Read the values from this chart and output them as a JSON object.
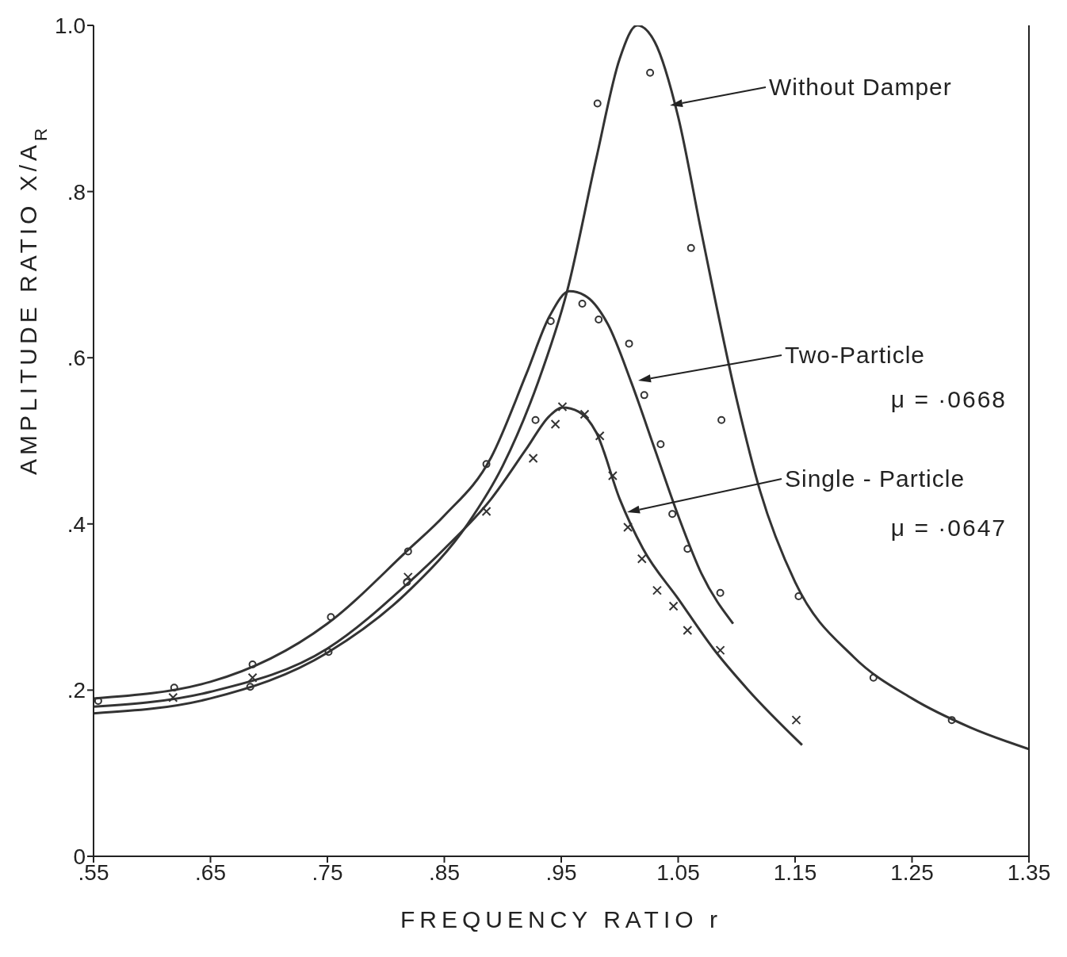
{
  "chart_data": {
    "type": "line",
    "xlabel": "FREQUENCY RATIO r",
    "ylabel": "AMPLITUDE RATIO X/A$_{R}$",
    "xlim": [
      0.55,
      1.35
    ],
    "ylim": [
      0,
      1.0
    ],
    "xticks": [
      {
        "value": 0.55,
        "label": ".55"
      },
      {
        "value": 0.65,
        "label": ".65"
      },
      {
        "value": 0.75,
        "label": ".75"
      },
      {
        "value": 0.85,
        "label": ".85"
      },
      {
        "value": 0.95,
        "label": ".95"
      },
      {
        "value": 1.05,
        "label": "1.05"
      },
      {
        "value": 1.15,
        "label": "1.15"
      },
      {
        "value": 1.25,
        "label": "1.25"
      },
      {
        "value": 1.35,
        "label": "1.35"
      }
    ],
    "yticks": [
      0,
      {
        "value": 0.2,
        "label": ".2"
      },
      {
        "value": 0.4,
        "label": ".4"
      },
      {
        "value": 0.6,
        "label": ".6"
      },
      {
        "value": 0.8,
        "label": ".8"
      },
      {
        "value": 1.0,
        "label": "1.0"
      }
    ],
    "grid": false,
    "legend": false,
    "line_style": "solid",
    "series": [
      {
        "color": "#333333",
        "marker": "none",
        "x": [
          0.55,
          0.65,
          0.75,
          0.82,
          0.87,
          0.9,
          0.93,
          0.955,
          0.98,
          1.0,
          1.015,
          1.03,
          1.05,
          1.07,
          1.1,
          1.12,
          1.15,
          1.2,
          1.25,
          1.3,
          1.35
        ],
        "values": [
          0.172,
          0.19,
          0.245,
          0.32,
          0.4,
          0.47,
          0.57,
          0.68,
          0.84,
          0.96,
          1.0,
          0.98,
          0.89,
          0.75,
          0.55,
          0.44,
          0.33,
          0.24,
          0.19,
          0.155,
          0.129
        ]
      },
      {
        "color": "#333333",
        "marker": "none",
        "x": [
          0.55,
          0.65,
          0.75,
          0.82,
          0.85,
          0.89,
          0.92,
          0.94,
          0.957,
          0.97,
          0.99,
          1.01,
          1.03,
          1.05,
          1.07,
          1.097
        ],
        "values": [
          0.19,
          0.21,
          0.28,
          0.37,
          0.41,
          0.48,
          0.58,
          0.65,
          0.68,
          0.675,
          0.64,
          0.57,
          0.49,
          0.41,
          0.34,
          0.28
        ]
      },
      {
        "color": "#333333",
        "marker": "none",
        "x": [
          0.55,
          0.65,
          0.75,
          0.82,
          0.85,
          0.89,
          0.92,
          0.94,
          0.951,
          0.965,
          0.98,
          1.0,
          1.02,
          1.05,
          1.08,
          1.11,
          1.156
        ],
        "values": [
          0.18,
          0.198,
          0.25,
          0.33,
          0.37,
          0.43,
          0.49,
          0.53,
          0.54,
          0.535,
          0.51,
          0.43,
          0.37,
          0.31,
          0.25,
          0.2,
          0.134
        ]
      },
      {
        "type": "scatter",
        "color": "#333333",
        "marker": "circle",
        "x": [
          0.684,
          0.751,
          0.818,
          0.928,
          0.981,
          1.026,
          1.061,
          1.087,
          1.153,
          1.217,
          1.284
        ],
        "values": [
          0.204,
          0.246,
          0.33,
          0.525,
          0.906,
          0.943,
          0.732,
          0.525,
          0.313,
          0.215,
          0.164
        ]
      },
      {
        "type": "scatter",
        "color": "#333333",
        "marker": "circle",
        "x": [
          0.554,
          0.619,
          0.686,
          0.753,
          0.819,
          0.886,
          0.941,
          0.968,
          0.982,
          1.008,
          1.021,
          1.035,
          1.045,
          1.058,
          1.086
        ],
        "values": [
          0.187,
          0.203,
          0.231,
          0.288,
          0.367,
          0.472,
          0.644,
          0.665,
          0.646,
          0.617,
          0.555,
          0.496,
          0.412,
          0.37,
          0.317
        ]
      },
      {
        "type": "scatter",
        "color": "#333333",
        "marker": "cross",
        "x": [
          0.618,
          0.686,
          0.819,
          0.886,
          0.926,
          0.945,
          0.951,
          0.97,
          0.983,
          0.994,
          1.007,
          1.019,
          1.032,
          1.046,
          1.058,
          1.086,
          1.151
        ],
        "values": [
          0.191,
          0.215,
          0.336,
          0.415,
          0.479,
          0.52,
          0.541,
          0.532,
          0.506,
          0.458,
          0.396,
          0.358,
          0.32,
          0.301,
          0.272,
          0.248,
          0.164
        ]
      }
    ],
    "annotations": [
      "Without Damper",
      "Two-Particle",
      "μ = ·0668",
      "Single - Particle",
      "μ = ·0647"
    ]
  }
}
